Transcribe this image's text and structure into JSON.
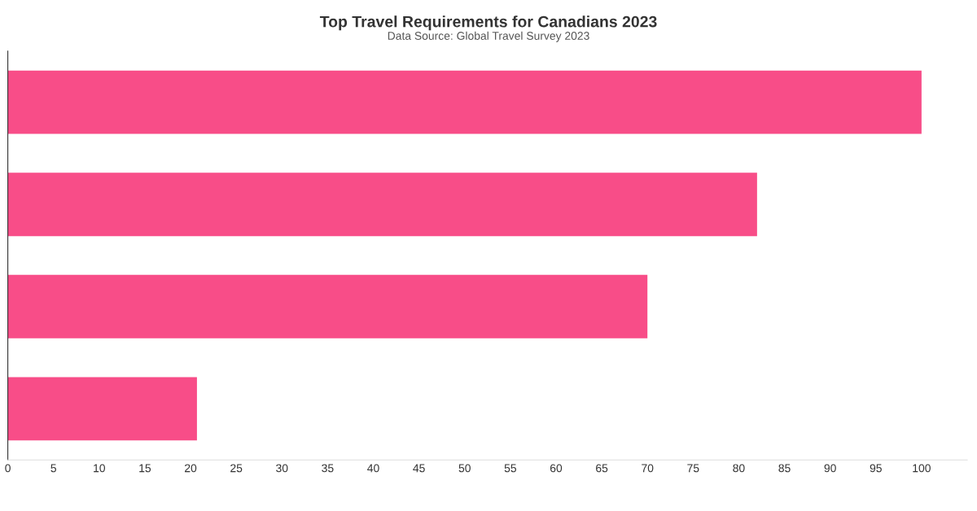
{
  "chart_data": {
    "type": "bar",
    "orientation": "horizontal",
    "title": "Top Travel Requirements for Canadians 2023",
    "subtitle": "Data Source: Global Travel Survey 2023",
    "categories": [
      null,
      null,
      null,
      null
    ],
    "values": [
      100,
      82,
      70,
      20.7
    ],
    "color": "#f84d88",
    "xlim": [
      0,
      105
    ],
    "xticks": [
      0,
      5,
      10,
      15,
      20,
      25,
      30,
      35,
      40,
      45,
      50,
      55,
      60,
      65,
      70,
      75,
      80,
      85,
      90,
      95,
      100
    ],
    "tick_labels": "x",
    "grid": false
  }
}
